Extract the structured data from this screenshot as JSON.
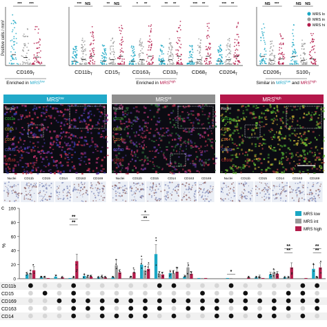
{
  "colors": {
    "low": "#1aa7c4",
    "int": "#9a9a9a",
    "high": "#b31b4a",
    "title_low": "#21a9c9",
    "title_int": "#8f8f8f",
    "title_high": "#b4174a"
  },
  "panel_a": {
    "y_axis_label": "Positive cells / mm²",
    "group_labels": {
      "left": "Enriched in MRS",
      "left_sup": "low",
      "middle": "Enriched in MRS",
      "middle_sup": "high",
      "right": "Similar in MRS",
      "right_sup": "low",
      "right_tail": "and MRS",
      "right_tail_sup": "high"
    },
    "markers": [
      {
        "label": "CD169",
        "sub": "T",
        "sig": [
          "***",
          "***",
          "*"
        ]
      },
      {
        "label": "CD11b",
        "sub": "T",
        "sig": [
          "***",
          "NS",
          "NS"
        ]
      },
      {
        "label": "CD15",
        "sub": "T",
        "sig": [
          "**",
          "NS",
          "**"
        ]
      },
      {
        "label": "CD163",
        "sub": "T",
        "sig": [
          "*",
          "**",
          "NS"
        ]
      },
      {
        "label": "CD33",
        "sub": "T",
        "sig": [
          "**",
          "**",
          "NS"
        ]
      },
      {
        "label": "CD68",
        "sub": "T",
        "sig": [
          "***",
          "**",
          "**"
        ]
      },
      {
        "label": "CD204",
        "sub": "T",
        "sig": [
          "***",
          "**",
          "**"
        ]
      },
      {
        "label": "CD206",
        "sub": "T",
        "sig": [
          "NS",
          "***",
          "NS"
        ]
      },
      {
        "label": "S100",
        "sub": "T",
        "sig": [
          "NS",
          "NS",
          "NS"
        ]
      }
    ],
    "legend": [
      "MRS lo",
      "MRS in",
      "MRS hi"
    ]
  },
  "panel_b": {
    "titles": [
      {
        "main": "MRS",
        "sup": "low"
      },
      {
        "main": "MRS",
        "sup": "int"
      },
      {
        "main": "MRS",
        "sup": "high"
      }
    ],
    "channel_labels": [
      "Nuclei",
      "CD11b",
      "CD15",
      "CD14",
      "CD163",
      "CD169"
    ],
    "channel_colors": [
      "#d9d9d9",
      "#33cc33",
      "#e6d633",
      "#e68a33",
      "#5f5fe6",
      "#e63333"
    ],
    "ihc_labels": [
      "Nuclei",
      "CD11b",
      "CD15",
      "CD14",
      "CD163",
      "CD169"
    ]
  },
  "panel_c": {
    "label": "c",
    "y_label": "%",
    "y_ticks": [
      "0",
      "20",
      "40",
      "60",
      "80",
      "100"
    ],
    "legend": [
      "MRS low",
      "MRS int",
      "MRS high"
    ],
    "marker_rows": [
      "CD11b",
      "CD15",
      "CD169",
      "CD163",
      "CD14"
    ],
    "chart_data": {
      "type": "bar",
      "ylim": [
        0,
        100
      ],
      "series": [
        {
          "name": "MRS low",
          "values": [
            6,
            2,
            3,
            1,
            4,
            2,
            2,
            0,
            20,
            35,
            8,
            3,
            1,
            0,
            1,
            0,
            2,
            6,
            2,
            0,
            14
          ]
        },
        {
          "name": "MRS int",
          "values": [
            8,
            2,
            1,
            2,
            3,
            3,
            19,
            2,
            12,
            7,
            8,
            16,
            1,
            0,
            1,
            0,
            3,
            9,
            2,
            0,
            2
          ]
        },
        {
          "name": "MRS high",
          "values": [
            12,
            1,
            2,
            25,
            3,
            2,
            9,
            9,
            14,
            6,
            10,
            7,
            1,
            0,
            0,
            2,
            1,
            7,
            16,
            1,
            16
          ]
        }
      ],
      "presence": [
        [
          1,
          0,
          0,
          1,
          0,
          0,
          0,
          0,
          0,
          1,
          1,
          0,
          0,
          0,
          1,
          0,
          0,
          0,
          0,
          1,
          1
        ],
        [
          0,
          1,
          0,
          1,
          0,
          0,
          0,
          0,
          0,
          0,
          0,
          0,
          1,
          0,
          0,
          1,
          0,
          0,
          1,
          1,
          0
        ],
        [
          0,
          0,
          1,
          1,
          1,
          1,
          1,
          1,
          1,
          1,
          1,
          1,
          1,
          1,
          1,
          1,
          1,
          1,
          1,
          1,
          1
        ],
        [
          0,
          0,
          0,
          1,
          1,
          1,
          0,
          1,
          1,
          1,
          0,
          1,
          1,
          1,
          0,
          1,
          0,
          1,
          1,
          0,
          1
        ],
        [
          0,
          0,
          0,
          1,
          0,
          1,
          1,
          1,
          1,
          0,
          1,
          0,
          0,
          1,
          1,
          0,
          1,
          1,
          0,
          1,
          0
        ]
      ]
    },
    "sig_marks": [
      "**",
      "**",
      "*",
      "**",
      "*",
      "**",
      "**",
      "**"
    ]
  }
}
